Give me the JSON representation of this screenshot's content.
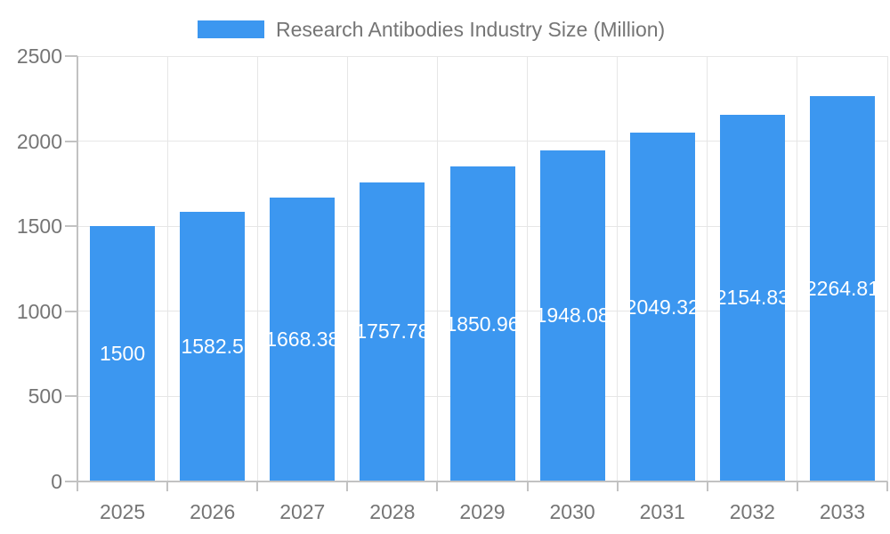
{
  "chart_data": {
    "type": "bar",
    "title": "Research Antibodies Industry Size (Million)",
    "categories": [
      "2025",
      "2026",
      "2027",
      "2028",
      "2029",
      "2030",
      "2031",
      "2032",
      "2033"
    ],
    "series": [
      {
        "name": "Research Antibodies Industry Size (Million)",
        "values": [
          1500,
          1582.5,
          1668.38,
          1757.78,
          1850.96,
          1948.08,
          2049.32,
          2154.83,
          2264.81
        ]
      }
    ],
    "value_labels": [
      "1500",
      "1582.5",
      "1668.38",
      "1757.78",
      "1850.96",
      "1948.08",
      "2049.32",
      "2154.83",
      "2264.81"
    ],
    "xlabel": "",
    "ylabel": "",
    "ylim": [
      0,
      2500
    ],
    "yticks": [
      0,
      500,
      1000,
      1500,
      2000,
      2500
    ],
    "grid": true,
    "legend_position": "top",
    "colors": {
      "bar": "#3C97F0",
      "value_label": "#FFFFFF",
      "axis_text": "#757575",
      "gridline": "#E6E6E6",
      "axis_line": "#C2C2C2",
      "background": "#FFFFFF"
    }
  }
}
